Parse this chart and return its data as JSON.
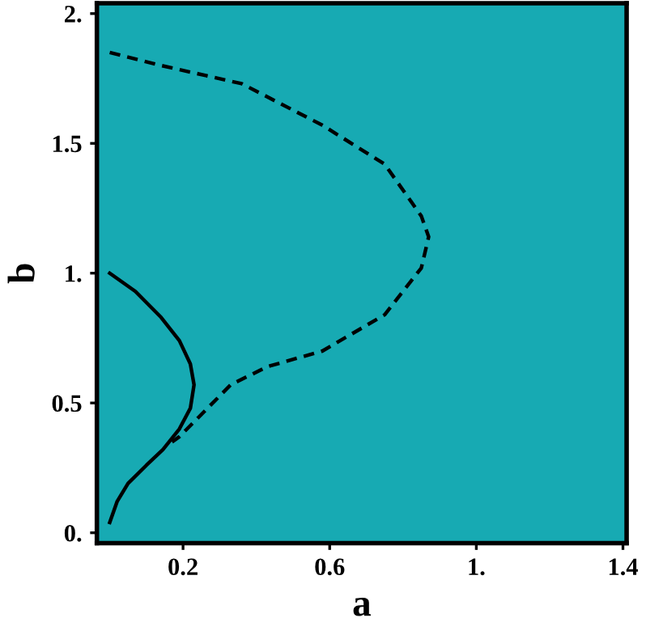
{
  "chart_data": {
    "type": "line",
    "xlabel": "a",
    "ylabel": "b",
    "xlim": [
      -0.035,
      1.41
    ],
    "ylim": [
      -0.04,
      2.04
    ],
    "xticks": [
      0.2,
      0.6,
      {
        "value": 1,
        "label": "1."
      },
      1.4
    ],
    "yticks": [
      {
        "value": 0,
        "label": "0."
      },
      0.5,
      {
        "value": 1,
        "label": "1."
      },
      1.5,
      {
        "value": 2,
        "label": "2."
      }
    ],
    "grid": false,
    "marker": "none",
    "series": [
      {
        "color": "#000000",
        "line_style": "solid",
        "x": [
          0,
          0.07,
          0.14,
          0.19,
          0.22,
          0.23,
          0.22,
          0.19,
          0.145,
          0.1,
          0.05,
          0.02,
          0.0
        ],
        "values": [
          1.0,
          0.93,
          0.83,
          0.74,
          0.65,
          0.57,
          0.48,
          0.4,
          0.32,
          0.26,
          0.19,
          0.12,
          0.04
        ]
      },
      {
        "color": "#000000",
        "line_style": "dashed",
        "x": [
          0,
          0.14,
          0.36,
          0.58,
          0.75,
          0.85,
          0.87,
          0.85,
          0.75,
          0.58,
          0.43,
          0.33,
          0.19,
          0.17
        ],
        "values": [
          1.85,
          1.8,
          1.73,
          1.57,
          1.42,
          1.22,
          1.14,
          1.02,
          0.84,
          0.7,
          0.64,
          0.57,
          0.37,
          0.35
        ]
      }
    ]
  }
}
